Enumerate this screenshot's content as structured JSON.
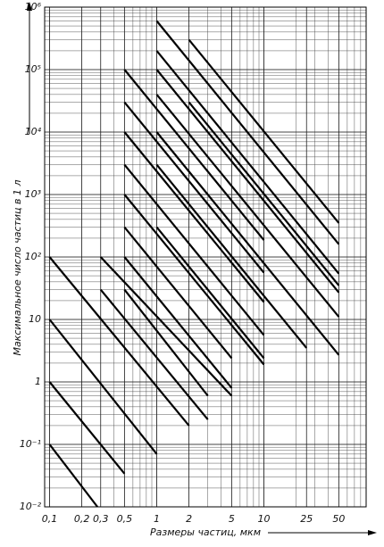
{
  "chart_data": {
    "type": "line",
    "x_label": "Размеры частиц, мкм",
    "y_label": "Максимальное число частиц в 1 л",
    "log_x": true,
    "log_y": true,
    "grid": true,
    "color": "#000000",
    "xlim": [
      0.09,
      90
    ],
    "ylim": [
      0.01,
      1000000
    ],
    "xticks": [
      {
        "value": 0.1,
        "label": "0,1"
      },
      {
        "value": 0.2,
        "label": "0,2"
      },
      {
        "value": 0.3,
        "label": "0,3"
      },
      {
        "value": 0.5,
        "label": "0,5"
      },
      1,
      2,
      5,
      10,
      25,
      50
    ],
    "yticks": [
      {
        "value": 0.01,
        "label": "10⁻²"
      },
      {
        "value": 0.1,
        "label": "10⁻¹"
      },
      1,
      10,
      {
        "value": 100,
        "label": "10²"
      },
      {
        "value": 1000,
        "label": "10³"
      },
      {
        "value": 10000,
        "label": "10⁴"
      },
      {
        "value": 100000,
        "label": "10⁵"
      },
      {
        "value": 1000000,
        "label": "10⁶"
      }
    ],
    "series": [
      {
        "x": [
          0.1,
          0.28
        ],
        "values": [
          0.1,
          0.01
        ]
      },
      {
        "x": [
          0.1,
          0.5
        ],
        "values": [
          1,
          0.034
        ]
      },
      {
        "x": [
          0.1,
          1
        ],
        "values": [
          10,
          0.07
        ]
      },
      {
        "x": [
          0.1,
          2
        ],
        "values": [
          100,
          0.2
        ]
      },
      {
        "x": [
          0.3,
          5
        ],
        "values": [
          100,
          0.6
        ]
      },
      {
        "x": [
          0.3,
          3
        ],
        "values": [
          30,
          0.25
        ]
      },
      {
        "x": [
          0.5,
          10
        ],
        "values": [
          100000,
          186
        ]
      },
      {
        "x": [
          0.5,
          10
        ],
        "values": [
          30000,
          56
        ]
      },
      {
        "x": [
          0.5,
          10
        ],
        "values": [
          10000,
          19
        ]
      },
      {
        "x": [
          0.5,
          10
        ],
        "values": [
          3000,
          5.6
        ]
      },
      {
        "x": [
          0.5,
          10
        ],
        "values": [
          1000,
          1.9
        ]
      },
      {
        "x": [
          0.5,
          5
        ],
        "values": [
          300,
          2.4
        ]
      },
      {
        "x": [
          0.5,
          5
        ],
        "values": [
          100,
          0.8
        ]
      },
      {
        "x": [
          0.5,
          3
        ],
        "values": [
          30,
          0.6
        ]
      },
      {
        "x": [
          1,
          50
        ],
        "values": [
          600000,
          160
        ]
      },
      {
        "x": [
          1,
          50
        ],
        "values": [
          200000,
          54
        ]
      },
      {
        "x": [
          1,
          50
        ],
        "values": [
          100000,
          27
        ]
      },
      {
        "x": [
          1,
          50
        ],
        "values": [
          40000,
          11
        ]
      },
      {
        "x": [
          1,
          50
        ],
        "values": [
          10000,
          2.7
        ]
      },
      {
        "x": [
          1,
          25
        ],
        "values": [
          3000,
          3.5
        ]
      },
      {
        "x": [
          2,
          50
        ],
        "values": [
          300000,
          350
        ]
      },
      {
        "x": [
          2,
          50
        ],
        "values": [
          30000,
          35
        ]
      },
      {
        "x": [
          1,
          10
        ],
        "values": [
          300,
          2.4
        ]
      }
    ]
  }
}
